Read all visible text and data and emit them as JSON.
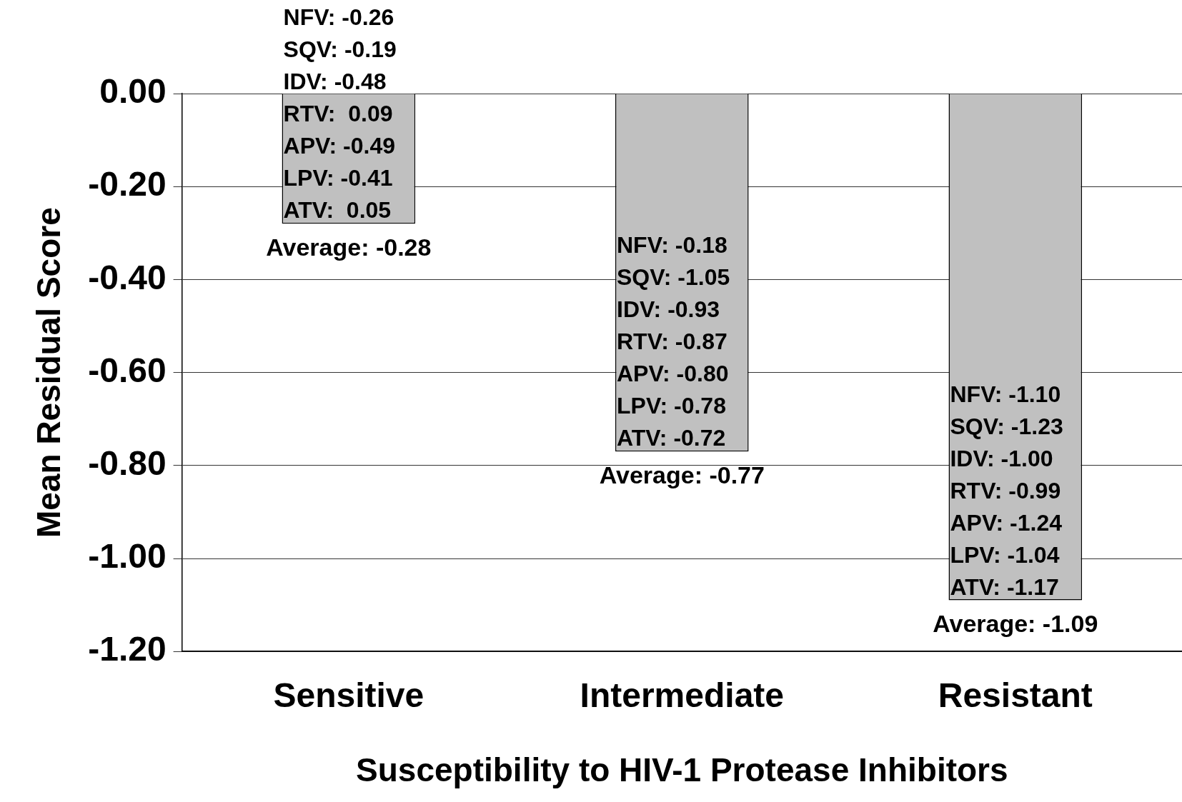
{
  "chart_data": {
    "type": "bar",
    "xlabel": "Susceptibility to HIV-1 Protease Inhibitors",
    "ylabel": "Mean Residual Score",
    "categories": [
      "Sensitive",
      "Intermediate",
      "Resistant"
    ],
    "values": [
      -0.28,
      -0.77,
      -1.09
    ],
    "color": "#c0c0c0",
    "value_labels": [
      "Average: -0.28",
      "Average: -0.77",
      "Average: -1.09"
    ],
    "ylim": [
      -1.2,
      0
    ],
    "yticks": [
      {
        "value": 0,
        "label": "0.00"
      },
      {
        "value": -0.2,
        "label": "-0.20"
      },
      {
        "value": -0.4,
        "label": "-0.40"
      },
      {
        "value": -0.6,
        "label": "-0.60"
      },
      {
        "value": -0.8,
        "label": "-0.80"
      },
      {
        "value": -1,
        "label": "-1.00"
      },
      {
        "value": -1.2,
        "label": "-1.20"
      }
    ],
    "grid": "y",
    "legend": false,
    "annotations": [
      "NFV: -0.26\nSQV: -0.19\nIDV: -0.48\nRTV:  0.09\nAPV: -0.49\nLPV: -0.41\nATV:  0.05",
      "NFV: -0.18\nSQV: -1.05\nIDV: -0.93\nRTV: -0.87\nAPV: -0.80\nLPV: -0.78\nATV: -0.72",
      "NFV: -1.10\nSQV: -1.23\nIDV: -1.00\nRTV: -0.99\nAPV: -1.24\nLPV: -1.04\nATV: -1.17"
    ]
  }
}
